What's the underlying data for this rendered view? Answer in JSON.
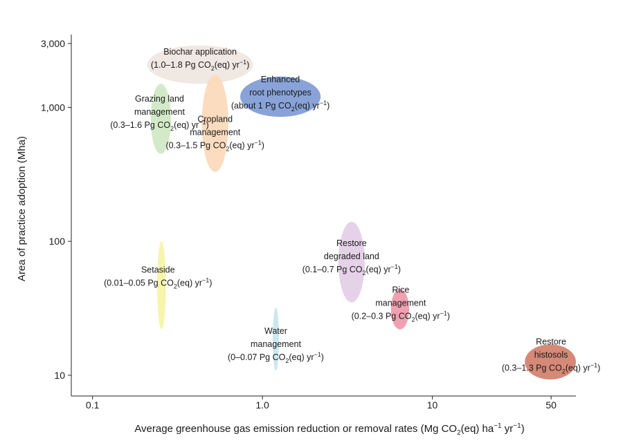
{
  "chart_data": {
    "type": "scatter",
    "title": "",
    "xlabel": {
      "text": "Average greenhouse gas emission reduction or removal rates (Mg CO",
      "sub": "2",
      "after": "(eq) ha",
      "sup1": "−1",
      "mid": " yr",
      "sup2": "−1",
      "end": ")"
    },
    "ylabel": "Area of practice adoption (Mha)",
    "x_scale": "log",
    "y_scale": "log",
    "xlim": [
      0.075,
      70
    ],
    "ylim": [
      7,
      3500
    ],
    "x_ticks": [
      {
        "value": 0.1,
        "label": "0.1"
      },
      {
        "value": 1.0,
        "label": "1.0"
      },
      {
        "value": 10,
        "label": "10"
      },
      {
        "value": 50,
        "label": "50"
      }
    ],
    "y_ticks": [
      {
        "value": 10,
        "label": "10"
      },
      {
        "value": 100,
        "label": "100"
      },
      {
        "value": 1000,
        "label": "1,000"
      },
      {
        "value": 3000,
        "label": "3,000"
      }
    ],
    "grid": false,
    "series": [
      {
        "name": "Biochar application",
        "range": "(1.0–1.8 Pg CO",
        "x": [
          0.21,
          0.88
        ],
        "y": [
          1500,
          2900
        ],
        "color": "#efe6e0",
        "label_lines": [
          "Biochar application"
        ]
      },
      {
        "name": "Grazing land management",
        "range": "(0.3–1.6 Pg CO",
        "x": [
          0.22,
          0.29
        ],
        "y": [
          450,
          1500
        ],
        "color": "#cfe8c3",
        "label_lines": [
          "Grazing land",
          "management"
        ]
      },
      {
        "name": "Cropland management",
        "range": "(0.3–1.5 Pg CO",
        "x": [
          0.44,
          0.63
        ],
        "y": [
          330,
          1750
        ],
        "color": "#fbd9b8",
        "label_lines": [
          "Cropland",
          "management"
        ]
      },
      {
        "name": "Enhanced root phenotypes",
        "range": "(about 1 Pg CO",
        "x": [
          0.74,
          2.2
        ],
        "y": [
          850,
          1700
        ],
        "color": "#7f9bd5",
        "label_lines": [
          "Enhanced",
          "root phenotypes"
        ]
      },
      {
        "name": "Setaside",
        "range": "(0.01–0.05 Pg CO",
        "x": [
          0.24,
          0.27
        ],
        "y": [
          22,
          100
        ],
        "color": "#f6f3a6",
        "label_lines": [
          "Setaside"
        ]
      },
      {
        "name": "Water management",
        "range": "(0–0.07 Pg CO",
        "x": [
          1.15,
          1.25
        ],
        "y": [
          10.8,
          32
        ],
        "color": "#c7e6ef",
        "label_lines": [
          "Water",
          "management"
        ]
      },
      {
        "name": "Restore degraded land",
        "range": "(0.1–0.7 Pg CO",
        "x": [
          2.8,
          4.0
        ],
        "y": [
          35,
          140
        ],
        "color": "#e3cde6",
        "label_lines": [
          "Restore",
          "degraded land"
        ]
      },
      {
        "name": "Rice management",
        "range": "(0.2–0.3 Pg CO",
        "x": [
          5.7,
          7.3
        ],
        "y": [
          22,
          44
        ],
        "color": "#ee99aa",
        "label_lines": [
          "Rice",
          "management"
        ]
      },
      {
        "name": "Restore histosols",
        "range": "(0.3–1.3 Pg CO",
        "x": [
          35,
          70
        ],
        "y": [
          9.3,
          17
        ],
        "color": "#d27f6b",
        "label_lines": [
          "Restore",
          "histosols"
        ]
      }
    ],
    "unit_parts": {
      "sub": "2",
      "mid": "(eq) yr",
      "sup": "−1",
      "close": ")"
    }
  }
}
